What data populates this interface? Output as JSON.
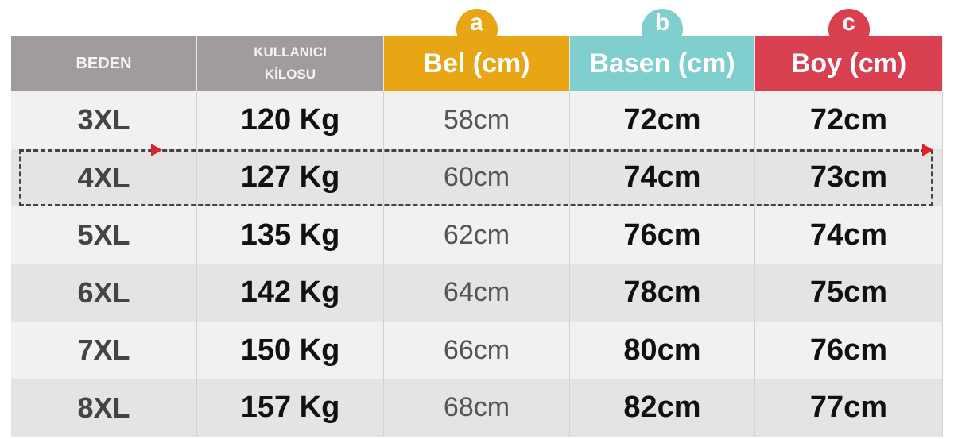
{
  "colors": {
    "header_gray": "#a09c9e",
    "bel": "#e8a514",
    "basen": "#7fcfcf",
    "boy": "#d9404f",
    "highlight_dash": "#444444",
    "arrow": "#e0202a"
  },
  "header": {
    "beden": "BEDEN",
    "kilo_line1": "KULLANICI",
    "kilo_line2": "KİLOSU",
    "bel": {
      "badge": "a",
      "label": "Bel (cm)"
    },
    "basen": {
      "badge": "b",
      "label": "Basen (cm)"
    },
    "boy": {
      "badge": "c",
      "label": "Boy (cm)"
    }
  },
  "rows": [
    {
      "size": "3XL",
      "weight": "120 Kg",
      "bel": "58cm",
      "basen": "72cm",
      "boy": "72cm"
    },
    {
      "size": "4XL",
      "weight": "127 Kg",
      "bel": "60cm",
      "basen": "74cm",
      "boy": "73cm",
      "highlighted": true
    },
    {
      "size": "5XL",
      "weight": "135 Kg",
      "bel": "62cm",
      "basen": "76cm",
      "boy": "74cm"
    },
    {
      "size": "6XL",
      "weight": "142 Kg",
      "bel": "64cm",
      "basen": "78cm",
      "boy": "75cm"
    },
    {
      "size": "7XL",
      "weight": "150 Kg",
      "bel": "66cm",
      "basen": "80cm",
      "boy": "76cm"
    },
    {
      "size": "8XL",
      "weight": "157 Kg",
      "bel": "68cm",
      "basen": "82cm",
      "boy": "77cm"
    }
  ]
}
